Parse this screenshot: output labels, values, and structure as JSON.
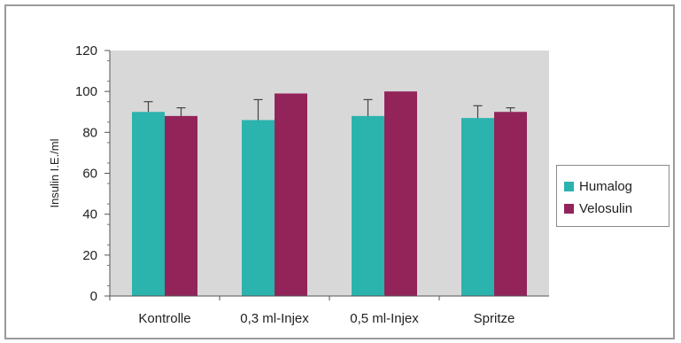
{
  "chart_data": {
    "type": "bar",
    "categories": [
      "Kontrolle",
      "0,3 ml-Injex",
      "0,5 ml-Injex",
      "Spritze"
    ],
    "series": [
      {
        "name": "Humalog",
        "values": [
          90,
          86,
          88,
          87
        ],
        "errors": [
          5,
          10,
          8,
          6
        ],
        "color": "#2bb3ad"
      },
      {
        "name": "Velosulin",
        "values": [
          88,
          99,
          100,
          90
        ],
        "errors": [
          4,
          0,
          0,
          2
        ],
        "color": "#93245a"
      }
    ],
    "ylabel": "Insulin I.E./ml",
    "ylim": [
      0,
      120
    ],
    "yticks": [
      0,
      20,
      40,
      60,
      80,
      100,
      120
    ],
    "plot_background": "#d8d8d8",
    "grid": false,
    "legend_placement": "right"
  }
}
